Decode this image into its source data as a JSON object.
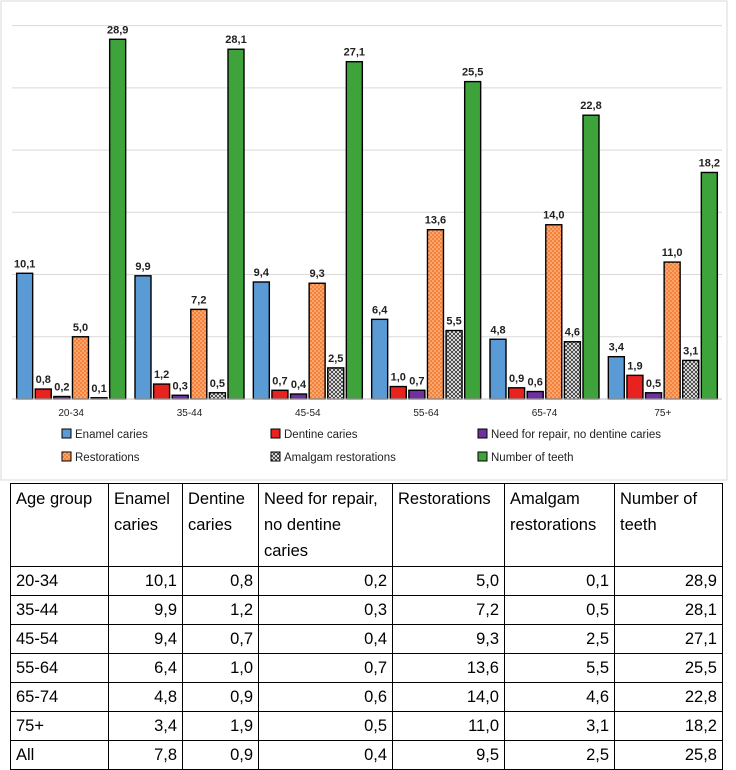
{
  "chart_data": {
    "type": "bar",
    "categories": [
      "20-34",
      "35-44",
      "45-54",
      "55-64",
      "65-74",
      "75+"
    ],
    "series": [
      {
        "name": "Enamel caries",
        "color": "#5b9bd5",
        "pattern": "solid",
        "values": [
          10.1,
          9.9,
          9.4,
          6.4,
          4.8,
          3.4
        ],
        "labels": [
          "10,1",
          "9,9",
          "9,4",
          "6,4",
          "4,8",
          "3,4"
        ]
      },
      {
        "name": "Dentine caries",
        "color": "#e8231f",
        "pattern": "solid",
        "values": [
          0.8,
          1.2,
          0.7,
          1.0,
          0.9,
          1.9
        ],
        "labels": [
          "0,8",
          "1,2",
          "0,7",
          "1,0",
          "0,9",
          "1,9"
        ]
      },
      {
        "name": "Need for repair, no dentine caries",
        "color": "#7030a0",
        "pattern": "solid",
        "values": [
          0.2,
          0.3,
          0.4,
          0.7,
          0.6,
          0.5
        ],
        "labels": [
          "0,2",
          "0,3",
          "0,4",
          "0,7",
          "0,6",
          "0,5"
        ]
      },
      {
        "name": "Restorations",
        "color": "#f4823a",
        "pattern": "dots",
        "values": [
          5.0,
          7.2,
          9.3,
          13.6,
          14.0,
          11.0
        ],
        "labels": [
          "5,0",
          "7,2",
          "9,3",
          "13,6",
          "14,0",
          "11,0"
        ]
      },
      {
        "name": "Amalgam restorations",
        "color": "#ffffff",
        "pattern": "checker",
        "values": [
          0.1,
          0.5,
          2.5,
          5.5,
          4.6,
          3.1
        ],
        "labels": [
          "0,1",
          "0,5",
          "2,5",
          "5,5",
          "4,6",
          "3,1"
        ]
      },
      {
        "name": "Number of teeth",
        "color": "#3da33a",
        "pattern": "solid",
        "values": [
          28.9,
          28.1,
          27.1,
          25.5,
          22.8,
          18.2
        ],
        "labels": [
          "28,9",
          "28,1",
          "27,1",
          "25,5",
          "22,8",
          "18,2"
        ]
      }
    ],
    "ylim": [
      0,
      30
    ],
    "grid": true,
    "legend_position": "bottom"
  },
  "table": {
    "headers": [
      "Age group",
      "Enamel caries",
      "Dentine caries",
      "Need for repair, no dentine caries",
      "Restorations",
      "Amalgam restorations",
      "Number of teeth"
    ],
    "rows": [
      [
        "20-34",
        "10,1",
        "0,8",
        "0,2",
        "5,0",
        "0,1",
        "28,9"
      ],
      [
        "35-44",
        "9,9",
        "1,2",
        "0,3",
        "7,2",
        "0,5",
        "28,1"
      ],
      [
        "45-54",
        "9,4",
        "0,7",
        "0,4",
        "9,3",
        "2,5",
        "27,1"
      ],
      [
        "55-64",
        "6,4",
        "1,0",
        "0,7",
        "13,6",
        "5,5",
        "25,5"
      ],
      [
        "65-74",
        "4,8",
        "0,9",
        "0,6",
        "14,0",
        "4,6",
        "22,8"
      ],
      [
        "75+",
        "3,4",
        "1,9",
        "0,5",
        "11,0",
        "3,1",
        "18,2"
      ],
      [
        "All",
        "7,8",
        "0,9",
        "0,4",
        "9,5",
        "2,5",
        "25,8"
      ]
    ]
  }
}
